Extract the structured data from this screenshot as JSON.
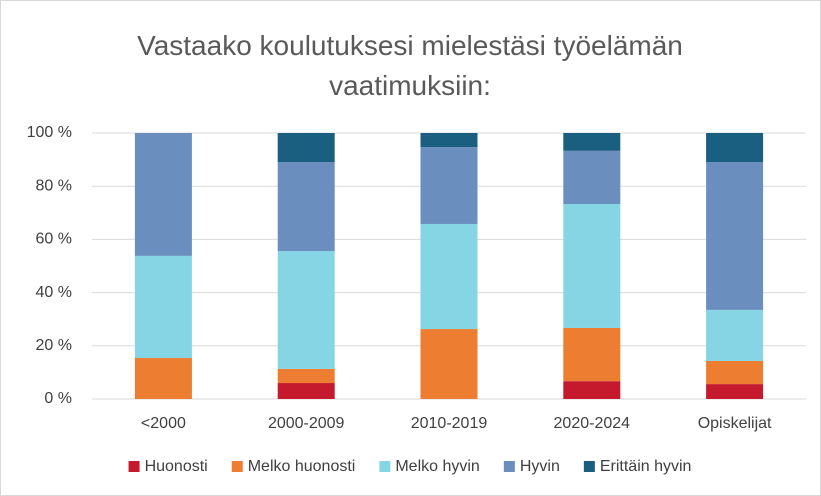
{
  "chart_data": {
    "type": "stacked_bar",
    "title": "Vastaako koulutuksesi mielestäsi työelämän vaatimuksiin:",
    "categories": [
      "<2000",
      "2000-2009",
      "2010-2019",
      "2020-2024",
      "Opiskelijat"
    ],
    "series": [
      {
        "name": "Huonosti",
        "color": "#c5192d",
        "values": [
          0,
          6,
          0,
          6.7,
          5.6
        ]
      },
      {
        "name": "Melko huonosti",
        "color": "#ed7d31",
        "values": [
          15.4,
          5.3,
          26.3,
          20,
          8.7
        ]
      },
      {
        "name": "Melko hyvin",
        "color": "#86d5e5",
        "values": [
          38.4,
          44.3,
          39.5,
          46.6,
          19.2
        ]
      },
      {
        "name": "Hyvin",
        "color": "#6a8fbf",
        "values": [
          46.2,
          33.5,
          28.9,
          20,
          55.6
        ]
      },
      {
        "name": "Erittäin hyvin",
        "color": "#1a5e80",
        "values": [
          0,
          10.9,
          5.3,
          6.7,
          10.9
        ]
      }
    ],
    "ylim": [
      0,
      100
    ],
    "yticks": [
      {
        "value": 0,
        "label": "0 %"
      },
      {
        "value": 20,
        "label": "20 %"
      },
      {
        "value": 40,
        "label": "40 %"
      },
      {
        "value": 60,
        "label": "60 %"
      },
      {
        "value": 80,
        "label": "80 %"
      },
      {
        "value": 100,
        "label": "100 %"
      }
    ],
    "grid": true
  }
}
